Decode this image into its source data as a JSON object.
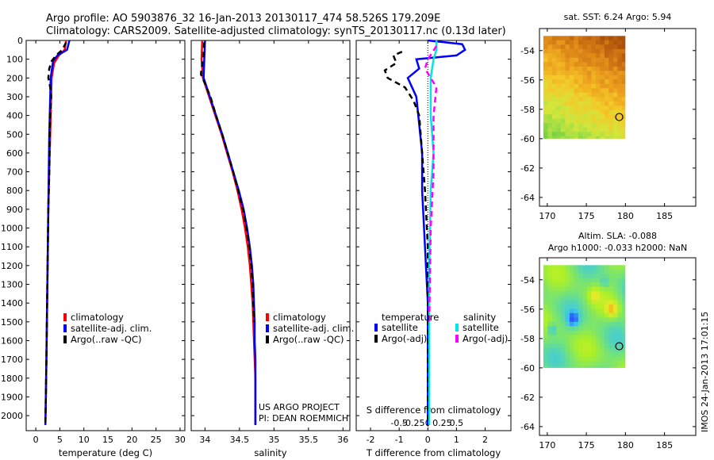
{
  "title": {
    "line1": "Argo profile: AO 5903876_32 16-Jan-2013 20130117_474 58.526S 179.209E",
    "line2": "Climatology: CARS2009. Satellite-adjusted climatology: synTS_20130117.nc (0.13d later)"
  },
  "credits": {
    "project": "US ARGO PROJECT",
    "pi": "PI: DEAN ROEMMICH"
  },
  "side_stamp": "IMOS 24-Jan-2013 17:01:15",
  "colors": {
    "climatology": "#ff0000",
    "satellite": "#0000ff",
    "argo": "#000000",
    "sal_satellite": "#00e6e6",
    "sal_argo": "#ff00ff"
  },
  "chart_data": [
    {
      "type": "line",
      "name": "temperature-profile",
      "xlabel": "temperature (deg C)",
      "ylabel": "",
      "xlim": [
        -2,
        31
      ],
      "ylim": [
        2080,
        0
      ],
      "xticks": [
        0,
        5,
        10,
        15,
        20,
        25,
        30
      ],
      "yticks": [
        0,
        100,
        200,
        300,
        400,
        500,
        600,
        700,
        800,
        900,
        1000,
        1100,
        1200,
        1300,
        1400,
        1500,
        1600,
        1700,
        1800,
        1900,
        2000
      ],
      "legend": [
        "climatology",
        "satellite-adj. clim.",
        "Argo(..raw -QC)"
      ],
      "series": [
        {
          "name": "climatology",
          "color": "#ff0000",
          "points": [
            [
              6.3,
              0
            ],
            [
              6.0,
              50
            ],
            [
              4.8,
              80
            ],
            [
              3.8,
              120
            ],
            [
              3.3,
              200
            ],
            [
              3.2,
              300
            ],
            [
              3.1,
              400
            ],
            [
              3.0,
              500
            ],
            [
              2.8,
              700
            ],
            [
              2.6,
              900
            ],
            [
              2.5,
              1100
            ],
            [
              2.4,
              1300
            ],
            [
              2.3,
              1500
            ],
            [
              2.2,
              1700
            ],
            [
              2.1,
              1900
            ],
            [
              2.0,
              2050
            ]
          ]
        },
        {
          "name": "satellite-adj. clim.",
          "color": "#0000ff",
          "points": [
            [
              7.0,
              0
            ],
            [
              6.5,
              50
            ],
            [
              4.5,
              80
            ],
            [
              3.6,
              110
            ],
            [
              3.1,
              200
            ],
            [
              3.0,
              300
            ],
            [
              2.9,
              400
            ],
            [
              2.8,
              500
            ],
            [
              2.7,
              700
            ],
            [
              2.6,
              900
            ],
            [
              2.5,
              1100
            ],
            [
              2.4,
              1300
            ],
            [
              2.3,
              1500
            ],
            [
              2.2,
              1700
            ],
            [
              2.1,
              1900
            ],
            [
              2.0,
              2050
            ]
          ]
        },
        {
          "name": "Argo(..raw -QC)",
          "color": "#000000",
          "dashed": true,
          "points": [
            [
              6.3,
              10
            ],
            [
              5.5,
              50
            ],
            [
              4.2,
              80
            ],
            [
              3.3,
              110
            ],
            [
              2.8,
              150
            ],
            [
              2.6,
              200
            ],
            [
              3.0,
              250
            ],
            [
              3.2,
              300
            ],
            [
              3.0,
              400
            ],
            [
              2.9,
              500
            ],
            [
              2.8,
              700
            ],
            [
              2.6,
              900
            ],
            [
              2.5,
              1100
            ],
            [
              2.4,
              1300
            ],
            [
              2.3,
              1500
            ],
            [
              2.2,
              1700
            ],
            [
              2.1,
              1900
            ],
            [
              2.0,
              2050
            ]
          ]
        }
      ]
    },
    {
      "type": "line",
      "name": "salinity-profile",
      "xlabel": "salinity",
      "ylabel": "",
      "xlim": [
        33.8,
        36.1
      ],
      "ylim": [
        2080,
        0
      ],
      "xticks": [
        34,
        34.5,
        35,
        35.5,
        36
      ],
      "xtick_labels": [
        "34",
        "34.5",
        "35",
        "35.5",
        "36"
      ],
      "legend": [
        "climatology",
        "satellite-adj. clim.",
        "Argo(..raw -QC)"
      ],
      "series": [
        {
          "name": "climatology",
          "color": "#ff0000",
          "points": [
            [
              33.96,
              0
            ],
            [
              33.95,
              100
            ],
            [
              33.97,
              200
            ],
            [
              34.06,
              300
            ],
            [
              34.15,
              400
            ],
            [
              34.24,
              500
            ],
            [
              34.32,
              600
            ],
            [
              34.4,
              700
            ],
            [
              34.47,
              800
            ],
            [
              34.53,
              900
            ],
            [
              34.58,
              1000
            ],
            [
              34.62,
              1100
            ],
            [
              34.65,
              1200
            ],
            [
              34.67,
              1300
            ],
            [
              34.69,
              1400
            ],
            [
              34.7,
              1500
            ],
            [
              34.71,
              1600
            ],
            [
              34.72,
              1700
            ],
            [
              34.73,
              1800
            ],
            [
              34.73,
              2050
            ]
          ]
        },
        {
          "name": "satellite-adj. clim.",
          "color": "#0000ff",
          "points": [
            [
              34.0,
              0
            ],
            [
              33.99,
              100
            ],
            [
              33.98,
              200
            ],
            [
              34.07,
              300
            ],
            [
              34.16,
              400
            ],
            [
              34.25,
              500
            ],
            [
              34.33,
              600
            ],
            [
              34.41,
              700
            ],
            [
              34.49,
              800
            ],
            [
              34.56,
              900
            ],
            [
              34.61,
              1000
            ],
            [
              34.65,
              1100
            ],
            [
              34.68,
              1200
            ],
            [
              34.7,
              1300
            ],
            [
              34.71,
              1400
            ],
            [
              34.72,
              1500
            ],
            [
              34.72,
              1600
            ],
            [
              34.73,
              1700
            ],
            [
              34.73,
              1800
            ],
            [
              34.73,
              2050
            ]
          ]
        },
        {
          "name": "Argo(..raw -QC)",
          "color": "#000000",
          "dashed": true,
          "points": [
            [
              33.99,
              10
            ],
            [
              33.97,
              100
            ],
            [
              33.94,
              180
            ],
            [
              34.0,
              230
            ],
            [
              34.08,
              300
            ],
            [
              34.16,
              400
            ],
            [
              34.25,
              500
            ],
            [
              34.33,
              600
            ],
            [
              34.41,
              700
            ],
            [
              34.48,
              800
            ],
            [
              34.55,
              900
            ],
            [
              34.6,
              1000
            ],
            [
              34.64,
              1100
            ],
            [
              34.67,
              1200
            ],
            [
              34.69,
              1300
            ],
            [
              34.7,
              1400
            ],
            [
              34.71,
              1500
            ]
          ]
        }
      ]
    },
    {
      "type": "line",
      "name": "difference-profile",
      "xlabel": "T difference from climatology",
      "top_label": "S difference from climatology",
      "xlim": [
        -2.5,
        2.9
      ],
      "ylim": [
        2080,
        0
      ],
      "xticks": [
        -2,
        -1,
        0,
        1,
        2
      ],
      "s_ticks": [
        "-0.5",
        "-0.25",
        "0",
        "0.25",
        "0.5"
      ],
      "legend_headers": [
        "temperature",
        "salinity"
      ],
      "legend": [
        "satellite",
        "Argo(-adj)",
        "satellite",
        "Argo(-adj)"
      ],
      "series": [
        {
          "name": "T satellite",
          "color": "#0000ff",
          "points": [
            [
              0,
              0
            ],
            [
              1.2,
              20
            ],
            [
              1.3,
              50
            ],
            [
              1.0,
              80
            ],
            [
              -0.4,
              100
            ],
            [
              -0.3,
              150
            ],
            [
              -0.7,
              200
            ],
            [
              -0.4,
              300
            ],
            [
              -0.2,
              600
            ],
            [
              -0.2,
              800
            ],
            [
              -0.1,
              1100
            ],
            [
              0,
              1400
            ],
            [
              0,
              2050
            ]
          ]
        },
        {
          "name": "T Argo(-adj)",
          "color": "#000000",
          "dashed": true,
          "points": [
            [
              -0.9,
              60
            ],
            [
              -1.2,
              80
            ],
            [
              -1.1,
              120
            ],
            [
              -1.5,
              160
            ],
            [
              -1.4,
              200
            ],
            [
              -0.8,
              250
            ],
            [
              -0.5,
              320
            ],
            [
              -0.3,
              400
            ],
            [
              -0.2,
              600
            ],
            [
              -0.1,
              800
            ],
            [
              0,
              1100
            ],
            [
              0,
              2050
            ]
          ]
        },
        {
          "name": "S satellite",
          "color": "#00e6e6",
          "points": [
            [
              0.3,
              0
            ],
            [
              0.3,
              50
            ],
            [
              0.2,
              100
            ],
            [
              0.1,
              200
            ],
            [
              0.1,
              400
            ],
            [
              0.2,
              600
            ],
            [
              0.1,
              800
            ],
            [
              0.05,
              1200
            ],
            [
              0.05,
              2050
            ]
          ]
        },
        {
          "name": "S Argo(-adj)",
          "color": "#ff00ff",
          "dashed": true,
          "points": [
            [
              0.3,
              30
            ],
            [
              0.0,
              100
            ],
            [
              -0.1,
              150
            ],
            [
              0.3,
              250
            ],
            [
              0.2,
              400
            ],
            [
              0.2,
              700
            ],
            [
              0.1,
              1000
            ],
            [
              0.05,
              1500
            ]
          ]
        }
      ]
    },
    {
      "type": "heatmap",
      "name": "sat-sst-map",
      "title": "sat. SST: 6.24 Argo: 5.94",
      "xlim": [
        169,
        189
      ],
      "ylim": [
        -64.6,
        -52.5
      ],
      "xticks": [
        170,
        175,
        180,
        185
      ],
      "yticks": [
        -54,
        -56,
        -58,
        -60,
        -62,
        -64
      ],
      "data_extent": {
        "lon": [
          169.5,
          180
        ],
        "lat": [
          -60,
          -53
        ]
      },
      "argo_position": {
        "lon": 179.209,
        "lat": -58.526
      }
    },
    {
      "type": "heatmap",
      "name": "altim-sla-map",
      "title": "Altim. SLA: -0.088",
      "subtitle": "Argo h1000: -0.033 h2000: NaN",
      "xlim": [
        169,
        189
      ],
      "ylim": [
        -64.6,
        -52.5
      ],
      "xticks": [
        170,
        175,
        180,
        185
      ],
      "yticks": [
        -54,
        -56,
        -58,
        -60,
        -62,
        -64
      ],
      "data_extent": {
        "lon": [
          169.5,
          180
        ],
        "lat": [
          -60,
          -53
        ]
      },
      "argo_position": {
        "lon": 179.209,
        "lat": -58.526
      }
    }
  ]
}
